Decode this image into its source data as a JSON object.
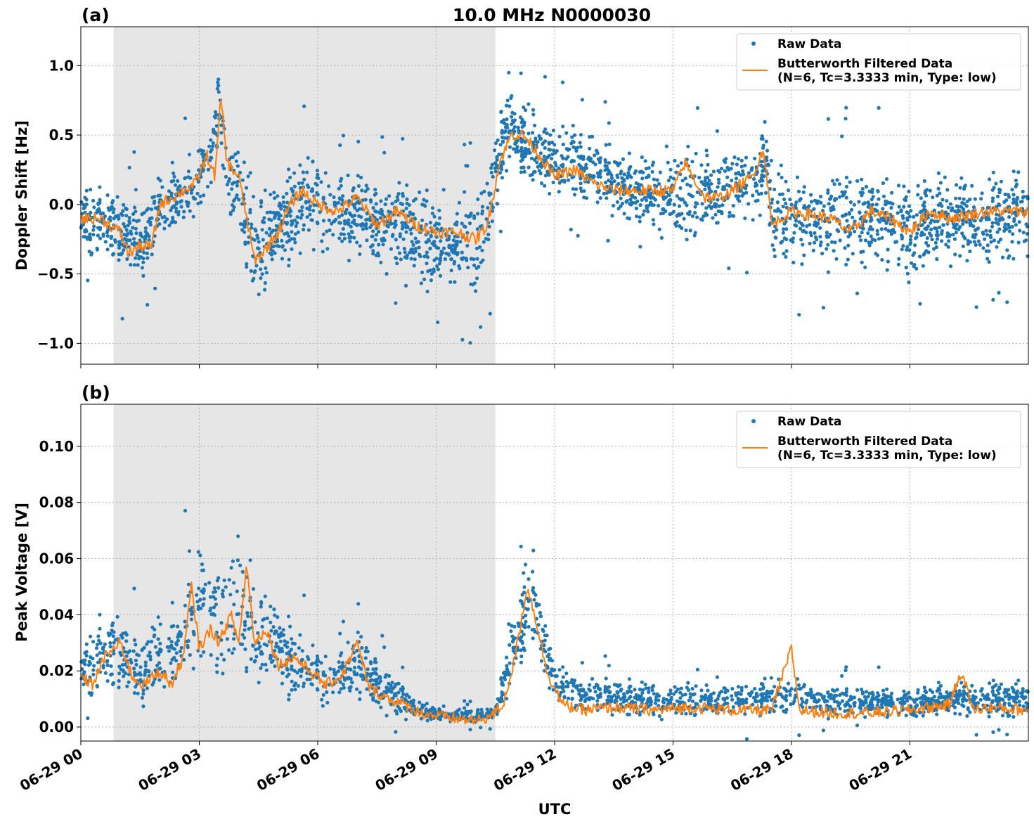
{
  "figure": {
    "title": "10.0 MHz N0000030",
    "xlabel": "UTC"
  },
  "colors": {
    "raw": "#1f77b4",
    "filtered": "#ff7f0e",
    "night_shading": "#e6e6e6",
    "grid": "#b0b0b0"
  },
  "chart_data": [
    {
      "type": "scatter",
      "panel_label": "(a)",
      "ylabel": "Doppler Shift [Hz]",
      "xlim_hours": [
        0,
        24
      ],
      "ylim": [
        -1.15,
        1.28
      ],
      "yticks": [
        1.0,
        0.5,
        0.0,
        -0.5,
        -1.0
      ],
      "ytick_labels": [
        "1.0",
        "0.5",
        "0.0",
        "−0.5",
        "−1.0"
      ],
      "shaded_interval_hours": [
        0.83,
        10.5
      ],
      "grid": true,
      "legend_position": "upper right",
      "series": [
        {
          "name": "Raw Data",
          "style": "markers",
          "band": [
            [
              0.0,
              -0.42,
              0.28
            ],
            [
              0.5,
              -0.45,
              0.2
            ],
            [
              1.0,
              -0.55,
              0.15
            ],
            [
              1.5,
              -0.6,
              0.12
            ],
            [
              1.83,
              -0.45,
              0.15
            ],
            [
              2.0,
              -0.3,
              0.3
            ],
            [
              2.5,
              -0.25,
              0.4
            ],
            [
              3.0,
              -0.15,
              0.5
            ],
            [
              3.3,
              0.0,
              0.65
            ],
            [
              3.5,
              0.4,
              1.15
            ],
            [
              3.7,
              -0.05,
              0.55
            ],
            [
              4.0,
              -0.3,
              0.45
            ],
            [
              4.3,
              -0.75,
              0.3
            ],
            [
              4.6,
              -0.8,
              0.25
            ],
            [
              5.0,
              -0.6,
              0.3
            ],
            [
              5.5,
              -0.45,
              0.45
            ],
            [
              6.0,
              -0.4,
              0.4
            ],
            [
              6.5,
              -0.45,
              0.3
            ],
            [
              7.0,
              -0.45,
              0.35
            ],
            [
              7.5,
              -0.5,
              0.25
            ],
            [
              8.0,
              -0.5,
              0.25
            ],
            [
              8.5,
              -0.7,
              0.2
            ],
            [
              9.0,
              -0.75,
              0.15
            ],
            [
              9.5,
              -0.65,
              0.1
            ],
            [
              10.0,
              -0.75,
              0.15
            ],
            [
              10.3,
              -0.55,
              0.35
            ],
            [
              10.5,
              -0.2,
              0.65
            ],
            [
              10.8,
              0.25,
              0.85
            ],
            [
              11.2,
              0.15,
              0.8
            ],
            [
              11.6,
              0.0,
              0.7
            ],
            [
              12.0,
              -0.05,
              0.6
            ],
            [
              12.5,
              -0.05,
              0.65
            ],
            [
              13.0,
              -0.1,
              0.6
            ],
            [
              13.5,
              -0.15,
              0.45
            ],
            [
              14.0,
              -0.2,
              0.4
            ],
            [
              14.5,
              -0.25,
              0.45
            ],
            [
              15.0,
              -0.3,
              0.5
            ],
            [
              15.5,
              -0.35,
              0.5
            ],
            [
              16.0,
              -0.3,
              0.45
            ],
            [
              16.5,
              -0.25,
              0.45
            ],
            [
              17.0,
              -0.2,
              0.5
            ],
            [
              17.4,
              -0.15,
              0.7
            ],
            [
              17.5,
              -0.5,
              0.35
            ],
            [
              18.0,
              -0.55,
              0.3
            ],
            [
              19.0,
              -0.55,
              0.35
            ],
            [
              20.0,
              -0.55,
              0.35
            ],
            [
              21.0,
              -0.6,
              0.35
            ],
            [
              22.0,
              -0.5,
              0.3
            ],
            [
              23.0,
              -0.5,
              0.3
            ],
            [
              24.0,
              -0.45,
              0.3
            ]
          ]
        },
        {
          "name": "Butterworth Filtered Data\n(N=6, Tc=3.3333 min, Type: low)",
          "style": "line",
          "points": [
            [
              0.0,
              -0.1
            ],
            [
              0.5,
              -0.1
            ],
            [
              1.0,
              -0.2
            ],
            [
              1.2,
              -0.35
            ],
            [
              1.5,
              -0.3
            ],
            [
              1.8,
              -0.3
            ],
            [
              2.0,
              0.0
            ],
            [
              2.3,
              0.05
            ],
            [
              2.6,
              0.1
            ],
            [
              2.9,
              0.15
            ],
            [
              3.2,
              0.35
            ],
            [
              3.4,
              0.2
            ],
            [
              3.55,
              0.78
            ],
            [
              3.7,
              0.3
            ],
            [
              4.0,
              0.2
            ],
            [
              4.2,
              -0.1
            ],
            [
              4.4,
              -0.4
            ],
            [
              4.6,
              -0.35
            ],
            [
              5.0,
              -0.2
            ],
            [
              5.3,
              0.0
            ],
            [
              5.6,
              0.1
            ],
            [
              6.0,
              0.0
            ],
            [
              6.5,
              -0.05
            ],
            [
              7.0,
              0.05
            ],
            [
              7.5,
              -0.15
            ],
            [
              8.0,
              -0.05
            ],
            [
              8.5,
              -0.15
            ],
            [
              9.0,
              -0.2
            ],
            [
              9.5,
              -0.2
            ],
            [
              10.0,
              -0.25
            ],
            [
              10.3,
              -0.15
            ],
            [
              10.6,
              0.3
            ],
            [
              10.9,
              0.5
            ],
            [
              11.2,
              0.5
            ],
            [
              11.5,
              0.4
            ],
            [
              12.0,
              0.2
            ],
            [
              12.5,
              0.25
            ],
            [
              13.0,
              0.15
            ],
            [
              13.5,
              0.1
            ],
            [
              14.0,
              0.1
            ],
            [
              14.5,
              0.1
            ],
            [
              15.0,
              0.1
            ],
            [
              15.3,
              0.3
            ],
            [
              15.5,
              0.2
            ],
            [
              15.8,
              0.05
            ],
            [
              16.2,
              0.05
            ],
            [
              16.5,
              0.1
            ],
            [
              17.0,
              0.2
            ],
            [
              17.3,
              0.4
            ],
            [
              17.5,
              -0.15
            ],
            [
              18.0,
              -0.05
            ],
            [
              19.0,
              -0.1
            ],
            [
              19.5,
              -0.2
            ],
            [
              20.0,
              -0.05
            ],
            [
              20.5,
              -0.1
            ],
            [
              21.0,
              -0.2
            ],
            [
              21.5,
              -0.05
            ],
            [
              22.0,
              -0.1
            ],
            [
              23.0,
              -0.05
            ],
            [
              24.0,
              -0.05
            ]
          ]
        }
      ]
    },
    {
      "type": "scatter",
      "panel_label": "(b)",
      "ylabel": "Peak Voltage [V]",
      "xlim_hours": [
        0,
        24
      ],
      "ylim": [
        -0.005,
        0.115
      ],
      "yticks": [
        0.1,
        0.08,
        0.06,
        0.04,
        0.02,
        0.0
      ],
      "ytick_labels": [
        "0.10",
        "0.08",
        "0.06",
        "0.04",
        "0.02",
        "0.00"
      ],
      "shaded_interval_hours": [
        0.83,
        10.5
      ],
      "grid": true,
      "legend_position": "upper right",
      "xticks_hours": [
        0,
        3,
        6,
        9,
        12,
        15,
        18,
        21
      ],
      "xtick_labels": [
        "06-29 00",
        "06-29 03",
        "06-29 06",
        "06-29 09",
        "06-29 12",
        "06-29 15",
        "06-29 18",
        "06-29 21"
      ],
      "series": [
        {
          "name": "Raw Data",
          "style": "markers",
          "band": [
            [
              0.0,
              0.008,
              0.032
            ],
            [
              0.5,
              0.008,
              0.045
            ],
            [
              1.0,
              0.006,
              0.045
            ],
            [
              1.5,
              0.005,
              0.035
            ],
            [
              2.0,
              0.006,
              0.045
            ],
            [
              2.5,
              0.01,
              0.05
            ],
            [
              2.8,
              0.012,
              0.075
            ],
            [
              3.2,
              0.012,
              0.07
            ],
            [
              3.5,
              0.01,
              0.07
            ],
            [
              4.0,
              0.012,
              0.075
            ],
            [
              4.5,
              0.01,
              0.055
            ],
            [
              5.0,
              0.008,
              0.05
            ],
            [
              5.5,
              0.005,
              0.04
            ],
            [
              6.0,
              0.005,
              0.03
            ],
            [
              6.5,
              0.006,
              0.028
            ],
            [
              7.0,
              0.006,
              0.04
            ],
            [
              7.5,
              0.005,
              0.028
            ],
            [
              8.0,
              0.003,
              0.02
            ],
            [
              8.5,
              0.002,
              0.01
            ],
            [
              9.0,
              0.001,
              0.008
            ],
            [
              9.5,
              0.001,
              0.007
            ],
            [
              10.0,
              0.001,
              0.007
            ],
            [
              10.5,
              0.002,
              0.008
            ],
            [
              10.8,
              0.01,
              0.03
            ],
            [
              11.2,
              0.02,
              0.06
            ],
            [
              11.4,
              0.025,
              0.075
            ],
            [
              11.7,
              0.015,
              0.045
            ],
            [
              12.0,
              0.006,
              0.025
            ],
            [
              12.5,
              0.004,
              0.02
            ],
            [
              13.0,
              0.003,
              0.02
            ],
            [
              14.0,
              0.002,
              0.018
            ],
            [
              15.0,
              0.002,
              0.018
            ],
            [
              16.0,
              0.002,
              0.016
            ],
            [
              17.0,
              0.002,
              0.018
            ],
            [
              18.0,
              0.002,
              0.02
            ],
            [
              19.0,
              0.002,
              0.016
            ],
            [
              20.0,
              0.002,
              0.016
            ],
            [
              21.0,
              0.002,
              0.016
            ],
            [
              22.0,
              0.002,
              0.018
            ],
            [
              23.0,
              0.002,
              0.018
            ],
            [
              24.0,
              0.002,
              0.018
            ]
          ]
        },
        {
          "name": "Butterworth Filtered Data\n(N=6, Tc=3.3333 min, Type: low)",
          "style": "line",
          "points": [
            [
              0.0,
              0.018
            ],
            [
              0.3,
              0.015
            ],
            [
              0.6,
              0.025
            ],
            [
              1.0,
              0.03
            ],
            [
              1.3,
              0.018
            ],
            [
              1.6,
              0.015
            ],
            [
              2.0,
              0.02
            ],
            [
              2.3,
              0.015
            ],
            [
              2.6,
              0.025
            ],
            [
              2.8,
              0.05
            ],
            [
              3.0,
              0.028
            ],
            [
              3.3,
              0.035
            ],
            [
              3.5,
              0.03
            ],
            [
              3.8,
              0.04
            ],
            [
              4.0,
              0.03
            ],
            [
              4.2,
              0.058
            ],
            [
              4.4,
              0.03
            ],
            [
              4.7,
              0.035
            ],
            [
              5.0,
              0.022
            ],
            [
              5.4,
              0.025
            ],
            [
              5.8,
              0.02
            ],
            [
              6.2,
              0.015
            ],
            [
              6.6,
              0.018
            ],
            [
              7.0,
              0.03
            ],
            [
              7.3,
              0.014
            ],
            [
              7.8,
              0.01
            ],
            [
              8.2,
              0.008
            ],
            [
              8.6,
              0.005
            ],
            [
              9.0,
              0.004
            ],
            [
              9.5,
              0.003
            ],
            [
              10.0,
              0.002
            ],
            [
              10.4,
              0.004
            ],
            [
              10.7,
              0.008
            ],
            [
              11.0,
              0.025
            ],
            [
              11.3,
              0.05
            ],
            [
              11.5,
              0.04
            ],
            [
              11.8,
              0.02
            ],
            [
              12.2,
              0.008
            ],
            [
              12.7,
              0.006
            ],
            [
              13.5,
              0.007
            ],
            [
              14.5,
              0.006
            ],
            [
              15.5,
              0.007
            ],
            [
              16.5,
              0.006
            ],
            [
              17.5,
              0.006
            ],
            [
              18.0,
              0.028
            ],
            [
              18.2,
              0.006
            ],
            [
              19.0,
              0.005
            ],
            [
              20.0,
              0.005
            ],
            [
              21.0,
              0.006
            ],
            [
              22.0,
              0.008
            ],
            [
              22.3,
              0.02
            ],
            [
              22.6,
              0.006
            ],
            [
              23.0,
              0.007
            ],
            [
              24.0,
              0.006
            ]
          ]
        }
      ]
    }
  ]
}
